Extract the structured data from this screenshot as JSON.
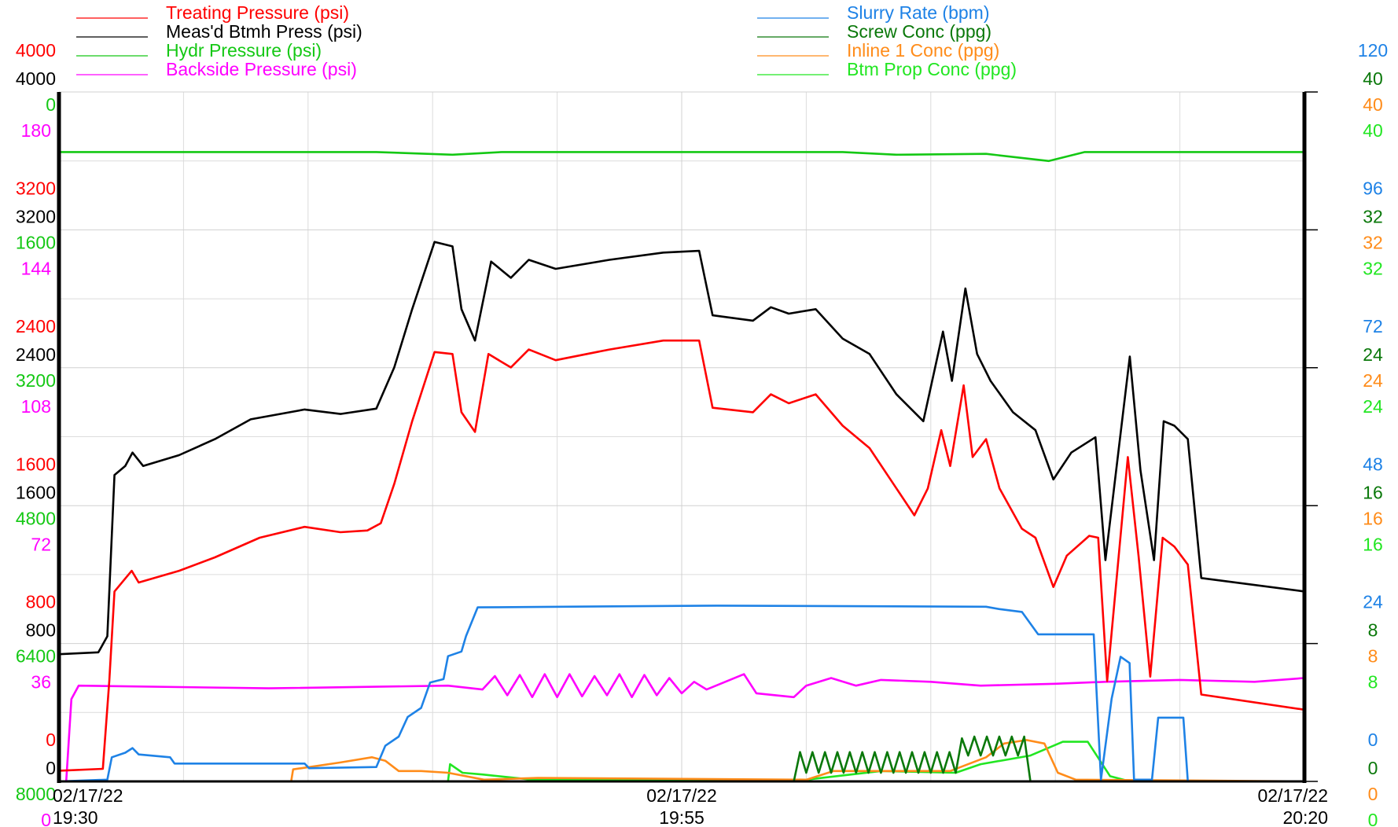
{
  "chart_data": {
    "type": "line",
    "xlim": [
      0,
      50
    ],
    "xticks": [
      {
        "value": 0,
        "label": "02/17/22\n19:30"
      },
      {
        "value": 25,
        "label": "02/17/22\n19:55"
      },
      {
        "value": 50,
        "label": "02/17/22\n20:20"
      }
    ],
    "grid": true,
    "axes": [
      {
        "side": "left",
        "color": "#ff0000",
        "lim": [
          0,
          4000
        ],
        "ticks": [
          0,
          800,
          1600,
          2400,
          3200,
          4000
        ]
      },
      {
        "side": "left",
        "color": "#000000",
        "lim": [
          0,
          4000
        ],
        "ticks": [
          0,
          800,
          1600,
          2400,
          3200,
          4000
        ]
      },
      {
        "side": "left",
        "color": "#14c814",
        "lim": [
          8000,
          0
        ],
        "ticks": [
          0,
          1600,
          3200,
          4800,
          6400,
          8000
        ]
      },
      {
        "side": "left",
        "color": "#ff00ff",
        "lim": [
          0,
          180
        ],
        "ticks": [
          0,
          36,
          72,
          108,
          144,
          180
        ]
      },
      {
        "side": "right",
        "color": "#1e82e6",
        "lim": [
          0,
          120
        ],
        "ticks": [
          0,
          24,
          48,
          72,
          96,
          120
        ]
      },
      {
        "side": "right",
        "color": "#0a780a",
        "lim": [
          0,
          40
        ],
        "ticks": [
          0,
          8,
          16,
          24,
          32,
          40
        ]
      },
      {
        "side": "right",
        "color": "#ff8c1a",
        "lim": [
          0,
          40
        ],
        "ticks": [
          0,
          8,
          16,
          24,
          32,
          40
        ]
      },
      {
        "side": "right",
        "color": "#22e622",
        "lim": [
          0,
          40
        ],
        "ticks": [
          0,
          8,
          16,
          24,
          32,
          40
        ]
      }
    ],
    "series": [
      {
        "name": "Treating Pressure (psi)",
        "color": "#ff0000",
        "axis": 0,
        "x": [
          0,
          1.76,
          2.02,
          2.23,
          2.92,
          3.2,
          4.82,
          6.26,
          8.06,
          9.86,
          11.3,
          12.38,
          12.92,
          13.46,
          14.18,
          15.08,
          15.8,
          16.16,
          16.7,
          17.24,
          18.14,
          18.86,
          19.94,
          22.1,
          24.26,
          25.7,
          26.24,
          27.86,
          28.58,
          29.3,
          30.38,
          31.46,
          32.54,
          33.62,
          34.34,
          34.88,
          35.42,
          35.78,
          36.32,
          36.68,
          37.22,
          37.76,
          38.66,
          39.2,
          39.92,
          40.46,
          41.36,
          41.72,
          42.08,
          42.91,
          43.34,
          43.81,
          44.31,
          44.78,
          45.32,
          45.86,
          50
        ],
        "values": [
          62,
          73,
          582,
          1102,
          1222,
          1154,
          1222,
          1300,
          1414,
          1477,
          1446,
          1456,
          1498,
          1726,
          2090,
          2491,
          2480,
          2142,
          2028,
          2480,
          2402,
          2506,
          2444,
          2506,
          2558,
          2558,
          2168,
          2142,
          2246,
          2194,
          2246,
          2064,
          1934,
          1700,
          1544,
          1700,
          2038,
          1830,
          2298,
          1882,
          1986,
          1700,
          1466,
          1414,
          1128,
          1310,
          1425,
          1414,
          582,
          1882,
          1310,
          608,
          1414,
          1362,
          1258,
          504,
          416
        ]
      },
      {
        "name": "Meas'd Btmh Press (psi)",
        "color": "#000000",
        "axis": 1,
        "x": [
          0,
          1.58,
          1.94,
          2.23,
          2.66,
          2.95,
          3.38,
          4.82,
          6.26,
          7.7,
          9.86,
          11.3,
          12.74,
          13.46,
          14.18,
          15.08,
          15.8,
          16.16,
          16.7,
          17.35,
          18.14,
          18.86,
          19.94,
          22.1,
          24.26,
          25.7,
          26.24,
          27.86,
          28.58,
          29.3,
          30.38,
          31.46,
          32.54,
          33.62,
          34.7,
          35.49,
          35.85,
          36.39,
          36.86,
          37.4,
          38.3,
          39.2,
          39.92,
          40.64,
          41.61,
          42.01,
          42.99,
          43.42,
          43.96,
          44.35,
          44.78,
          45.32,
          45.86,
          50
        ],
        "values": [
          738,
          749,
          842,
          1778,
          1830,
          1908,
          1830,
          1893,
          1986,
          2101,
          2158,
          2132,
          2163,
          2402,
          2740,
          3130,
          3104,
          2740,
          2558,
          3016,
          2922,
          3026,
          2974,
          3026,
          3068,
          3078,
          2704,
          2673,
          2751,
          2714,
          2740,
          2569,
          2480,
          2246,
          2090,
          2610,
          2324,
          2860,
          2480,
          2324,
          2142,
          2038,
          1752,
          1908,
          1997,
          1284,
          2465,
          1804,
          1284,
          2090,
          2064,
          1986,
          1180,
          1102
        ]
      },
      {
        "name": "Hydr Pressure (psi)",
        "color": "#14c814",
        "axis": 2,
        "x": [
          0,
          12.74,
          15.8,
          17.78,
          31.46,
          33.62,
          37.22,
          39.74,
          41.18,
          50
        ],
        "values": [
          697,
          697,
          728,
          697,
          697,
          728,
          718,
          801,
          697,
          697
        ]
      },
      {
        "name": "Backside Pressure (psi)",
        "color": "#ff00ff",
        "axis": 3,
        "x": [
          0,
          0.29,
          0.5,
          0.79,
          8.42,
          15.62,
          17.0,
          17.5,
          18.0,
          18.5,
          19.0,
          19.5,
          20.0,
          20.5,
          21.0,
          21.5,
          22.0,
          22.5,
          23.0,
          23.5,
          24.0,
          24.5,
          25.0,
          25.5,
          26.0,
          27.5,
          28.0,
          29.5,
          30.0,
          31.0,
          32.0,
          33.0,
          35.0,
          37.0,
          40.0,
          42.0,
          45.0,
          48.0,
          50
        ],
        "values": [
          0,
          0,
          21.5,
          25.0,
          24.3,
          25.0,
          24.0,
          27.5,
          22.5,
          27.8,
          22.0,
          28.0,
          22.0,
          28.0,
          22.2,
          27.5,
          22.5,
          28.0,
          22.0,
          27.8,
          22.5,
          27.0,
          23.0,
          26.0,
          24.0,
          28.0,
          23.0,
          22.0,
          25.0,
          27.0,
          25.0,
          26.5,
          26.0,
          25.0,
          25.5,
          26.0,
          26.5,
          26.0,
          27.0
        ]
      },
      {
        "name": "Slurry Rate (bpm)",
        "color": "#1e82e6",
        "axis": 4,
        "x": [
          0,
          1.94,
          2.12,
          2.66,
          2.95,
          3.2,
          4.46,
          4.64,
          9.86,
          10.04,
          12.74,
          13.1,
          13.64,
          14.0,
          14.54,
          14.9,
          15.44,
          15.62,
          16.16,
          16.34,
          16.81,
          26.42,
          37.22,
          37.76,
          38.66,
          39.31,
          41.54,
          41.83,
          42.26,
          42.62,
          42.98,
          43.16,
          43.88,
          44.13,
          45.14,
          45.32,
          50
        ],
        "values": [
          0,
          0.3,
          4.2,
          5.0,
          5.8,
          4.7,
          4.2,
          3.1,
          3.1,
          2.3,
          2.5,
          6.2,
          7.8,
          11.2,
          12.8,
          17.2,
          17.8,
          21.8,
          22.6,
          25.3,
          30.3,
          30.6,
          30.4,
          30.0,
          29.5,
          25.6,
          25.6,
          0.3,
          14.4,
          21.7,
          20.6,
          0.3,
          0.3,
          11.1,
          11.1,
          0,
          0
        ]
      },
      {
        "name": "Screw Conc (ppg)",
        "color": "#0a780a",
        "axis": 5,
        "x": [
          0,
          29.5,
          29.75,
          30,
          30.25,
          30.5,
          30.75,
          31,
          31.25,
          31.5,
          31.75,
          32,
          32.25,
          32.5,
          32.75,
          33,
          33.25,
          33.5,
          33.75,
          34,
          34.25,
          34.5,
          34.75,
          35,
          35.25,
          35.5,
          35.75,
          36,
          36.25,
          36.5,
          36.75,
          37,
          37.25,
          37.5,
          37.75,
          38,
          38.25,
          38.5,
          38.75,
          39,
          50
        ],
        "values": [
          0,
          0,
          1.7,
          0.5,
          1.7,
          0.5,
          1.7,
          0.5,
          1.7,
          0.5,
          1.7,
          0.5,
          1.7,
          0.5,
          1.7,
          0.5,
          1.7,
          0.5,
          1.7,
          0.5,
          1.7,
          0.5,
          1.7,
          0.5,
          1.7,
          0.5,
          1.7,
          0.5,
          2.5,
          1.5,
          2.6,
          1.5,
          2.6,
          1.5,
          2.6,
          1.5,
          2.6,
          1.5,
          2.6,
          0,
          0
        ]
      },
      {
        "name": "Inline 1 Conc (ppg)",
        "color": "#ff8c1a",
        "axis": 6,
        "x": [
          0,
          9.32,
          9.4,
          11.3,
          12.56,
          13.1,
          13.64,
          14.54,
          15.62,
          17.06,
          19.22,
          30.02,
          31.1,
          35.78,
          37.22,
          37.94,
          38.84,
          39.56,
          40.1,
          40.82,
          50
        ],
        "values": [
          0,
          0,
          0.7,
          1.1,
          1.4,
          1.2,
          0.6,
          0.6,
          0.5,
          0.1,
          0.2,
          0.1,
          0.6,
          0.6,
          1.4,
          2.2,
          2.4,
          2.2,
          0.5,
          0.1,
          0
        ]
      },
      {
        "name": "Btm Prop Conc (ppg)",
        "color": "#22e622",
        "axis": 7,
        "x": [
          0,
          15.62,
          15.7,
          16.2,
          17,
          19,
          30,
          33,
          36,
          37,
          39,
          40.3,
          41.3,
          42.2,
          43,
          50
        ],
        "values": [
          0,
          0,
          1.0,
          0.5,
          0.4,
          0.1,
          0.1,
          0.6,
          0.5,
          1.0,
          1.5,
          2.3,
          2.3,
          0.3,
          0,
          0
        ]
      }
    ]
  }
}
